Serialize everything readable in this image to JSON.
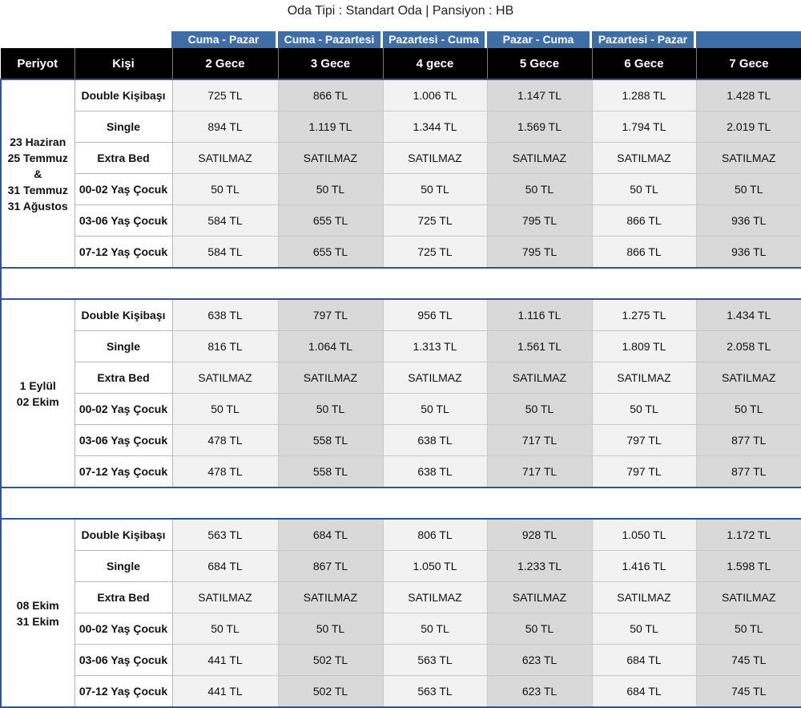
{
  "title": "Oda Tipi : Standart Oda | Pansiyon : HB",
  "day_ranges": [
    "Cuma - Pazar",
    "Cuma - Pazartesi",
    "Pazartesi - Cuma",
    "Pazar - Cuma",
    "Pazartesi - Pazar",
    ""
  ],
  "headers": {
    "periyot": "Periyot",
    "kisi": "Kişi",
    "nights": [
      "2 Gece",
      "3 Gece",
      "4 gece",
      "5 Gece",
      "6 Gece",
      "7 Gece"
    ]
  },
  "periods": [
    {
      "label": [
        "23 Haziran",
        "25 Temmuz",
        "&",
        "31 Temmuz",
        "31 Ağustos"
      ],
      "rows": [
        {
          "kisi": "Double Kişibaşı",
          "prices": [
            "725 TL",
            "866 TL",
            "1.006 TL",
            "1.147 TL",
            "1.288 TL",
            "1.428 TL"
          ]
        },
        {
          "kisi": "Single",
          "prices": [
            "894 TL",
            "1.119 TL",
            "1.344 TL",
            "1.569 TL",
            "1.794 TL",
            "2.019 TL"
          ]
        },
        {
          "kisi": "Extra Bed",
          "prices": [
            "SATILMAZ",
            "SATILMAZ",
            "SATILMAZ",
            "SATILMAZ",
            "SATILMAZ",
            "SATILMAZ"
          ]
        },
        {
          "kisi": "00-02 Yaş Çocuk",
          "prices": [
            "50 TL",
            "50 TL",
            "50 TL",
            "50 TL",
            "50 TL",
            "50 TL"
          ]
        },
        {
          "kisi": "03-06 Yaş Çocuk",
          "prices": [
            "584 TL",
            "655 TL",
            "725 TL",
            "795 TL",
            "866 TL",
            "936 TL"
          ]
        },
        {
          "kisi": "07-12 Yaş Çocuk",
          "prices": [
            "584 TL",
            "655 TL",
            "725 TL",
            "795 TL",
            "866 TL",
            "936 TL"
          ]
        }
      ]
    },
    {
      "label": [
        "1 Eylül",
        "02 Ekim"
      ],
      "rows": [
        {
          "kisi": "Double Kişibaşı",
          "prices": [
            "638 TL",
            "797 TL",
            "956 TL",
            "1.116 TL",
            "1.275 TL",
            "1.434 TL"
          ]
        },
        {
          "kisi": "Single",
          "prices": [
            "816 TL",
            "1.064 TL",
            "1.313 TL",
            "1.561 TL",
            "1.809 TL",
            "2.058 TL"
          ]
        },
        {
          "kisi": "Extra Bed",
          "prices": [
            "SATILMAZ",
            "SATILMAZ",
            "SATILMAZ",
            "SATILMAZ",
            "SATILMAZ",
            "SATILMAZ"
          ]
        },
        {
          "kisi": "00-02 Yaş Çocuk",
          "prices": [
            "50 TL",
            "50 TL",
            "50 TL",
            "50 TL",
            "50 TL",
            "50 TL"
          ]
        },
        {
          "kisi": "03-06 Yaş Çocuk",
          "prices": [
            "478 TL",
            "558 TL",
            "638 TL",
            "717 TL",
            "797 TL",
            "877 TL"
          ]
        },
        {
          "kisi": "07-12 Yaş Çocuk",
          "prices": [
            "478 TL",
            "558 TL",
            "638 TL",
            "717 TL",
            "797 TL",
            "877 TL"
          ]
        }
      ]
    },
    {
      "label": [
        "08 Ekim",
        "31 Ekim"
      ],
      "rows": [
        {
          "kisi": "Double Kişibaşı",
          "prices": [
            "563 TL",
            "684 TL",
            "806 TL",
            "928 TL",
            "1.050 TL",
            "1.172 TL"
          ]
        },
        {
          "kisi": "Single",
          "prices": [
            "684 TL",
            "867 TL",
            "1.050 TL",
            "1.233 TL",
            "1.416 TL",
            "1.598 TL"
          ]
        },
        {
          "kisi": "Extra Bed",
          "prices": [
            "SATILMAZ",
            "SATILMAZ",
            "SATILMAZ",
            "SATILMAZ",
            "SATILMAZ",
            "SATILMAZ"
          ]
        },
        {
          "kisi": "00-02 Yaş Çocuk",
          "prices": [
            "50 TL",
            "50 TL",
            "50 TL",
            "50 TL",
            "50 TL",
            "50 TL"
          ]
        },
        {
          "kisi": "03-06 Yaş Çocuk",
          "prices": [
            "441 TL",
            "502 TL",
            "563 TL",
            "623 TL",
            "684 TL",
            "745 TL"
          ]
        },
        {
          "kisi": "07-12 Yaş Çocuk",
          "prices": [
            "441 TL",
            "502 TL",
            "563 TL",
            "623 TL",
            "684 TL",
            "745 TL"
          ]
        }
      ]
    }
  ]
}
